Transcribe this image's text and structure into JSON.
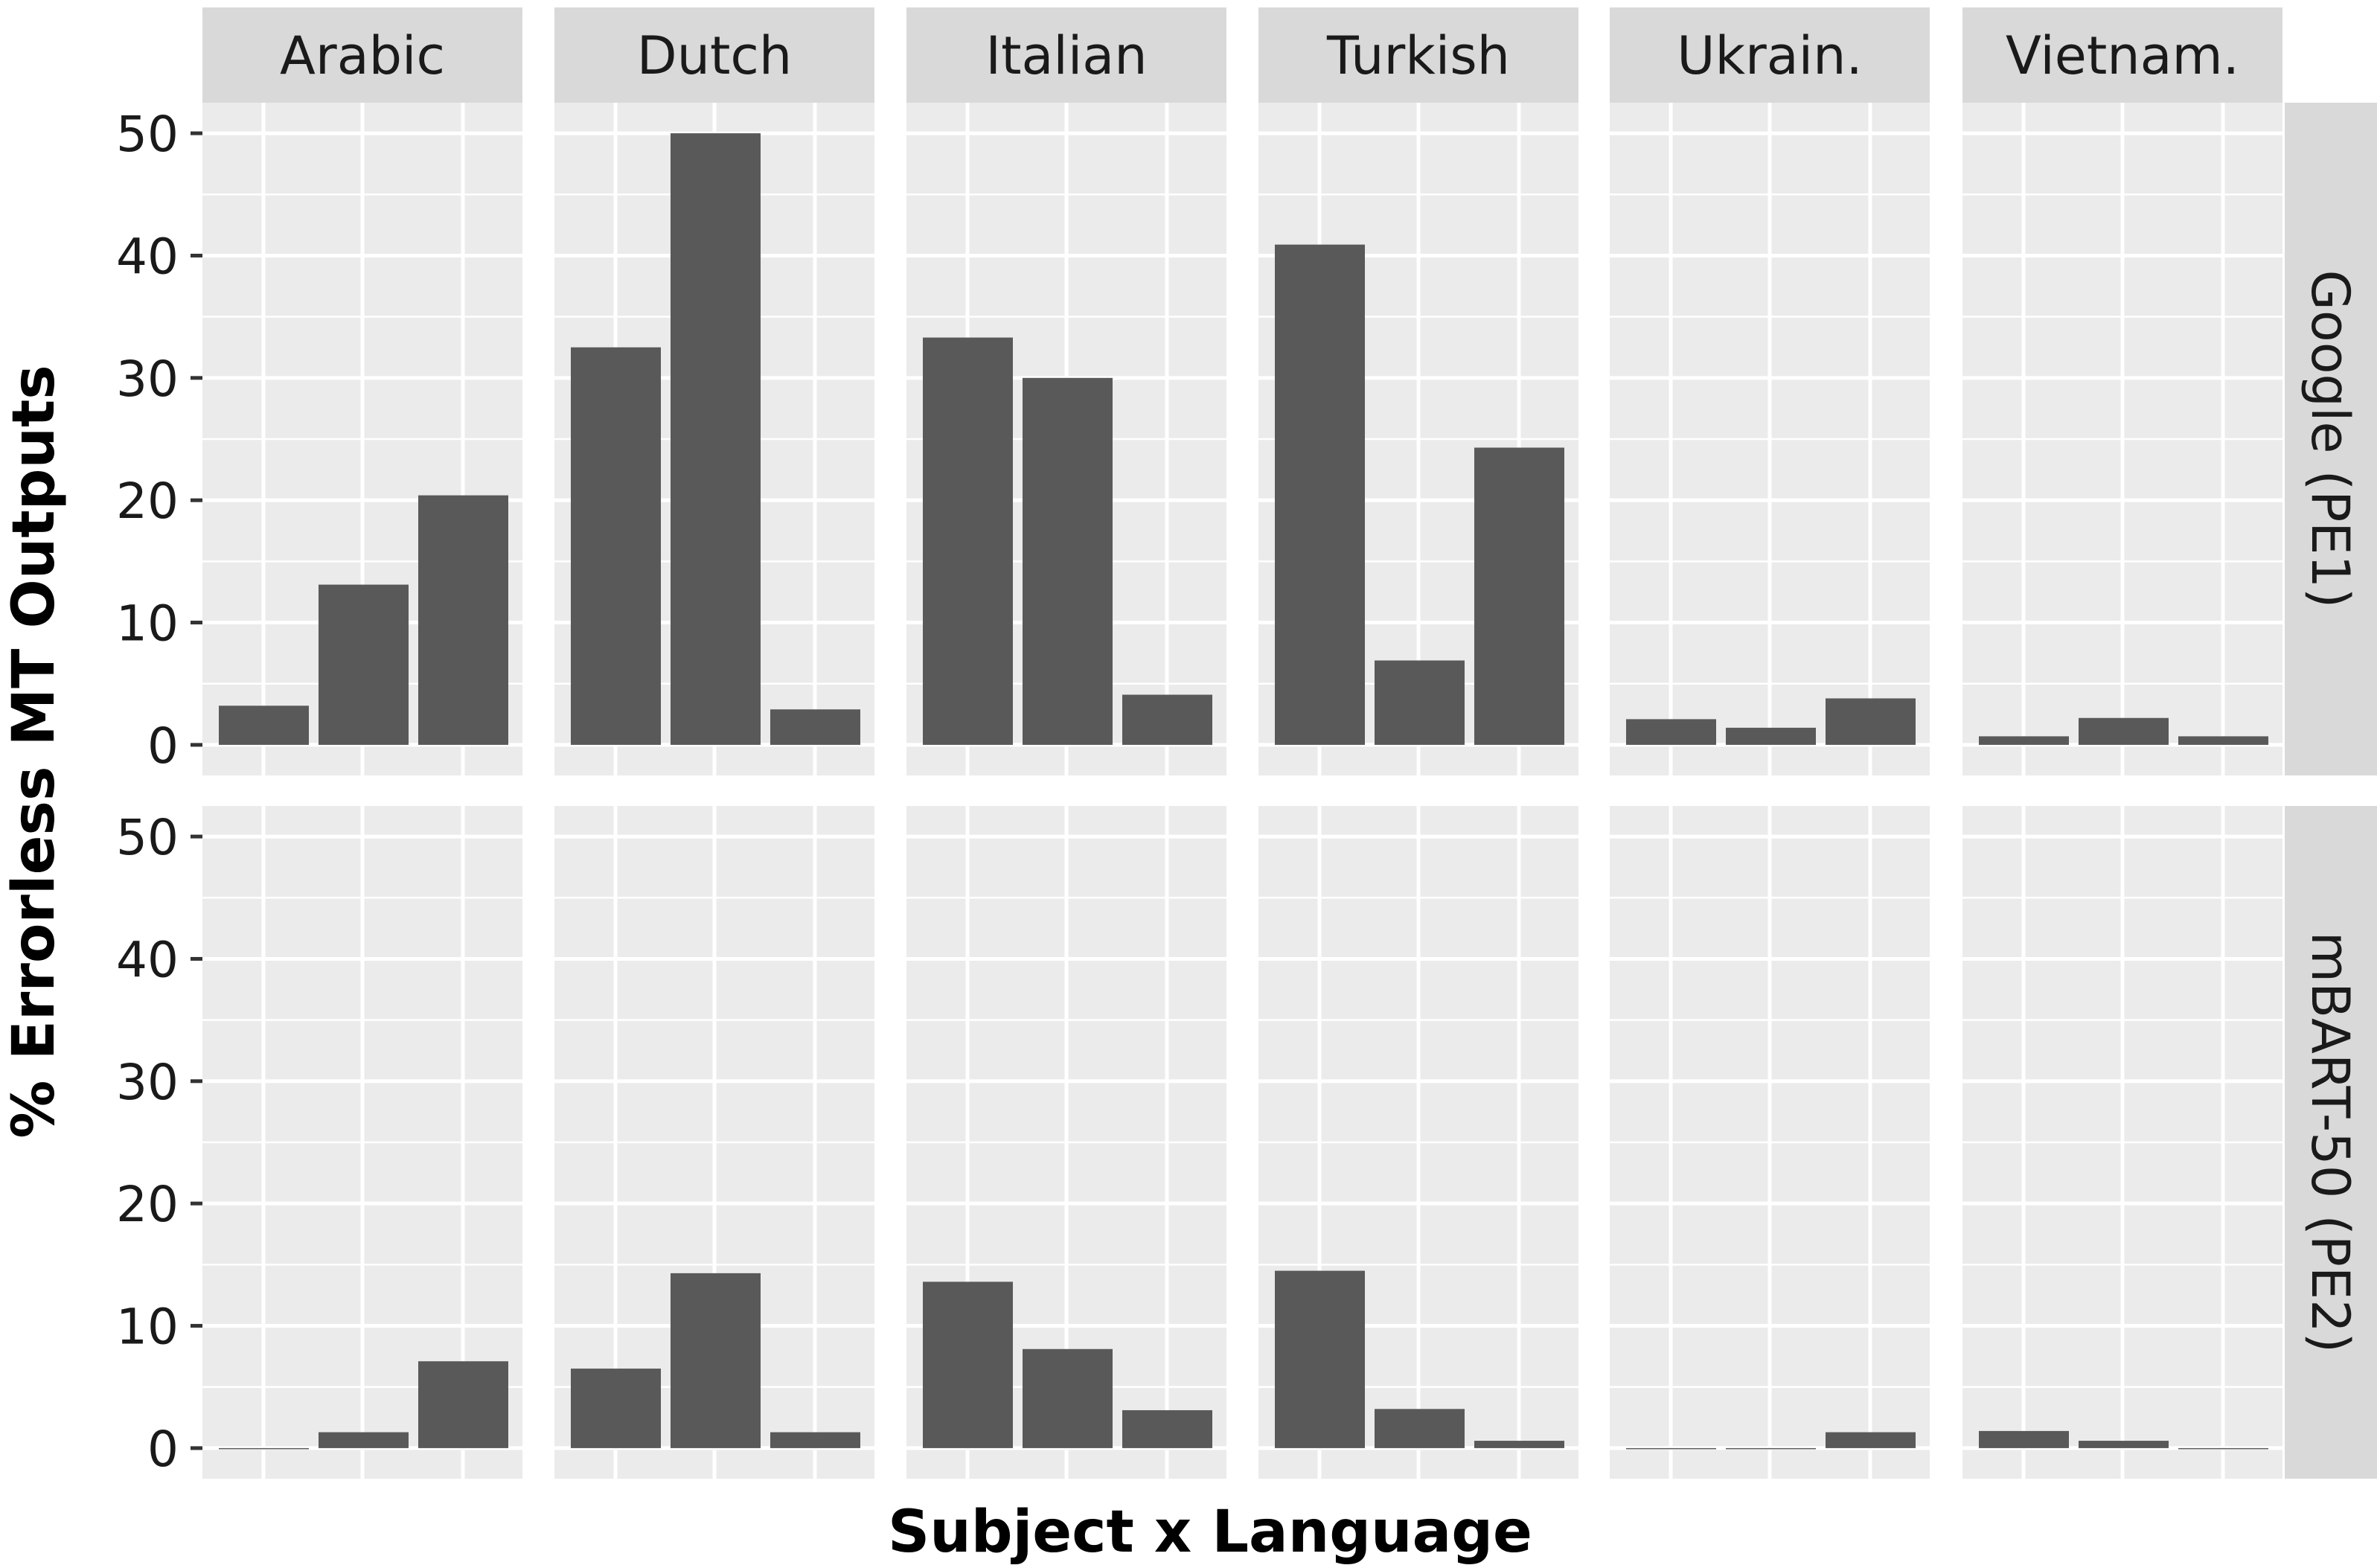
{
  "chart_data": {
    "type": "bar",
    "title": "",
    "xlabel": "Subject x Language",
    "ylabel": "% Errorless MT Outputs",
    "ylim": [
      -2.5,
      52.5
    ],
    "y_ticks": [
      0,
      10,
      20,
      30,
      40,
      50
    ],
    "grid": true,
    "legend": "none",
    "colors": {
      "bar": "#595959",
      "panel_background": "#ebebeb",
      "grid": "#ffffff",
      "strip_background": "#d9d9d9",
      "text": "#1a1a1a"
    },
    "column_facets": [
      "Arabic",
      "Dutch",
      "Italian",
      "Turkish",
      "Ukrain.",
      "Vietnam."
    ],
    "row_facets": [
      "Google (PE1)",
      "mBART-50 (PE2)"
    ],
    "bars_per_panel": 3,
    "series": [
      {
        "row_facet": "Google (PE1)",
        "values": {
          "Arabic": [
            3.2,
            13.1,
            20.4
          ],
          "Dutch": [
            32.5,
            50.0,
            2.9
          ],
          "Italian": [
            33.3,
            30.0,
            4.1
          ],
          "Turkish": [
            40.9,
            6.9,
            24.3
          ],
          "Ukrain.": [
            2.1,
            1.4,
            3.8
          ],
          "Vietnam.": [
            0.7,
            2.2,
            0.7
          ]
        }
      },
      {
        "row_facet": "mBART-50 (PE2)",
        "values": {
          "Arabic": [
            0,
            1.3,
            7.1
          ],
          "Dutch": [
            6.5,
            14.3,
            1.3
          ],
          "Italian": [
            13.6,
            8.1,
            3.1
          ],
          "Turkish": [
            14.5,
            3.2,
            0.6
          ],
          "Ukrain.": [
            0,
            0,
            1.3
          ],
          "Vietnam.": [
            1.4,
            0.6,
            0
          ]
        }
      }
    ]
  }
}
